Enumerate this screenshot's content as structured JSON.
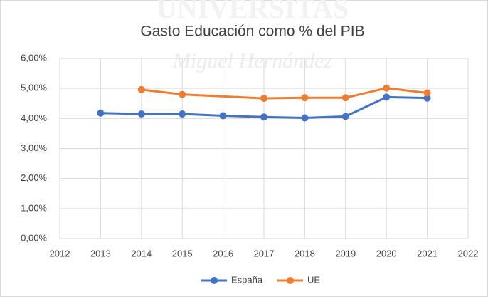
{
  "chart_data": {
    "type": "line",
    "title": "Gasto Educación como % del PIB",
    "watermark": [
      "UNIVERSITAS",
      "Miguel Hernández"
    ],
    "xlim": [
      2012,
      2022
    ],
    "xticks": [
      2012,
      2013,
      2014,
      2015,
      2016,
      2017,
      2018,
      2019,
      2020,
      2021,
      2022
    ],
    "ylim": [
      0,
      6
    ],
    "yticks": [
      {
        "value": 0,
        "label": "0,00%"
      },
      {
        "value": 1,
        "label": "1,00%"
      },
      {
        "value": 2,
        "label": "2,00%"
      },
      {
        "value": 3,
        "label": "3,00%"
      },
      {
        "value": 4,
        "label": "4,00%"
      },
      {
        "value": 5,
        "label": "5,00%"
      },
      {
        "value": 6,
        "label": "6,00%"
      }
    ],
    "grid": true,
    "legend": "bottom",
    "series": [
      {
        "name": "España",
        "color": "#4472c4",
        "x": [
          2013,
          2014,
          2015,
          2016,
          2017,
          2018,
          2019,
          2020,
          2021
        ],
        "values": [
          4.18,
          4.15,
          4.15,
          4.09,
          4.05,
          4.02,
          4.07,
          4.71,
          4.68
        ]
      },
      {
        "name": "UE",
        "color": "#ed7d31",
        "x": [
          2014,
          2015,
          2017,
          2018,
          2019,
          2020,
          2021
        ],
        "values": [
          4.96,
          4.8,
          4.67,
          4.69,
          4.69,
          5.01,
          4.85
        ]
      }
    ]
  }
}
